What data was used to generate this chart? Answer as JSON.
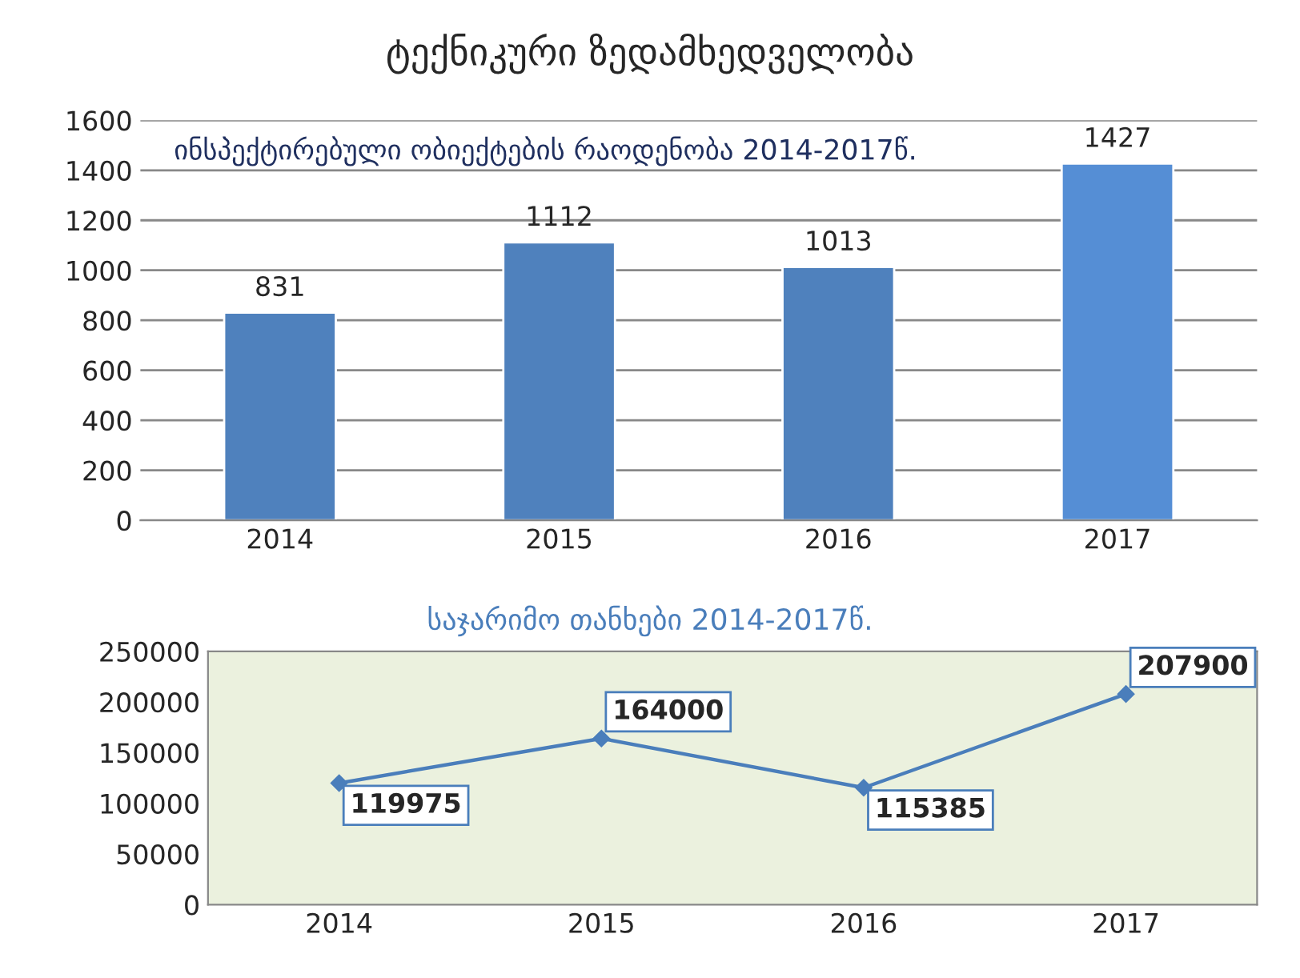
{
  "chart_data": [
    {
      "type": "bar",
      "title": "ტექნიკური ზედამხედველობა",
      "subtitle": "ინსპექტირებული ობიექტების რაოდენობა 2014-2017წ.",
      "categories": [
        "2014",
        "2015",
        "2016",
        "2017"
      ],
      "values": [
        831,
        1112,
        1013,
        1427
      ],
      "colors": [
        "#4f81bd",
        "#4f81bd",
        "#4f81bd",
        "#558ed5"
      ],
      "ylim": [
        0,
        1600
      ],
      "yticks": [
        0,
        200,
        400,
        600,
        800,
        1000,
        1200,
        1400,
        1600
      ],
      "grid": "y",
      "data_labels": true
    },
    {
      "type": "line",
      "title": "საჯარიმო თანხები 2014-2017წ.",
      "categories": [
        "2014",
        "2015",
        "2016",
        "2017"
      ],
      "series": [
        {
          "color": "#4a7ebb",
          "values": [
            119975,
            164000,
            115385,
            207900
          ]
        }
      ],
      "ylim": [
        0,
        250000
      ],
      "yticks": [
        0,
        50000,
        100000,
        150000,
        200000,
        250000
      ],
      "grid": false,
      "marker": "diamond",
      "data_labels": true
    }
  ]
}
